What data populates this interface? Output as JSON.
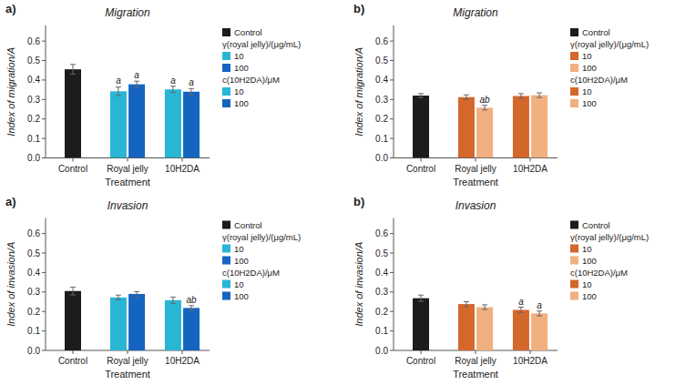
{
  "chart_data": [
    {
      "type": "bar",
      "panel_label": "a)",
      "title": "Migration",
      "x_label": "Treatment",
      "y_label": "Index of migration/A",
      "categories": [
        "Control",
        "Royal jelly",
        "10H2DA"
      ],
      "ylim": [
        0,
        0.68
      ],
      "yticks": [
        {
          "value": 0.0,
          "label": "0.0"
        },
        0.1,
        0.2,
        0.3,
        0.4,
        0.5,
        0.6
      ],
      "grid": false,
      "legend": "right",
      "series": [
        {
          "name": "Control",
          "color": "#1c1c1c",
          "values": [
            0.455,
            null,
            null
          ],
          "errors": [
            0.025,
            null,
            null
          ]
        },
        {
          "name": "10",
          "legend_title": "γ(royal jelly)/(μg/mL)",
          "color": "#29b6d4",
          "values": [
            null,
            0.342,
            null
          ],
          "errors": [
            null,
            0.022,
            null
          ]
        },
        {
          "name": "100",
          "color": "#1565c0",
          "values": [
            null,
            0.378,
            null
          ],
          "errors": [
            null,
            0.016,
            null
          ]
        },
        {
          "name": "10",
          "legend_title": "c(10H2DA)/μM",
          "color": "#29b6d4",
          "values": [
            null,
            null,
            0.352
          ],
          "errors": [
            null,
            null,
            0.016
          ]
        },
        {
          "name": "100",
          "color": "#1565c0",
          "values": [
            null,
            null,
            0.34
          ],
          "errors": [
            null,
            null,
            0.016
          ]
        }
      ],
      "annotations": [
        {
          "text": "a",
          "series": 1,
          "category": 1,
          "y": 0.375
        },
        {
          "text": "a",
          "series": 2,
          "category": 1,
          "y": 0.403
        },
        {
          "text": "a",
          "series": 3,
          "category": 2,
          "y": 0.377
        },
        {
          "text": "a",
          "series": 4,
          "category": 2,
          "y": 0.365
        }
      ]
    },
    {
      "type": "bar",
      "panel_label": "b)",
      "title": "Migration",
      "x_label": "Treatment",
      "y_label": "Index of migration/A",
      "categories": [
        "Control",
        "Royal jelly",
        "10H2DA"
      ],
      "ylim": [
        0,
        0.68
      ],
      "yticks": [
        {
          "value": 0.0,
          "label": "0.0"
        },
        0.1,
        0.2,
        0.3,
        0.4,
        0.5,
        0.6
      ],
      "grid": false,
      "legend": "right",
      "series": [
        {
          "name": "Control",
          "color": "#1c1c1c",
          "values": [
            0.32,
            null,
            null
          ],
          "errors": [
            0.01,
            null,
            null
          ]
        },
        {
          "name": "10",
          "legend_title": "γ(royal jelly)/(μg/mL)",
          "color": "#d4672a",
          "values": [
            null,
            0.312,
            null
          ],
          "errors": [
            null,
            0.012,
            null
          ]
        },
        {
          "name": "100",
          "color": "#f0b080",
          "values": [
            null,
            0.258,
            null
          ],
          "errors": [
            null,
            0.012,
            null
          ]
        },
        {
          "name": "10",
          "legend_title": "c(10H2DA)/μM",
          "color": "#d4672a",
          "values": [
            null,
            null,
            0.318
          ],
          "errors": [
            null,
            null,
            0.012
          ]
        },
        {
          "name": "100",
          "color": "#f0b080",
          "values": [
            null,
            null,
            0.322
          ],
          "errors": [
            null,
            null,
            0.012
          ]
        }
      ],
      "annotations": [
        {
          "text": "ab",
          "series": 2,
          "category": 1,
          "y": 0.278
        }
      ]
    },
    {
      "type": "bar",
      "panel_label": "a)",
      "title": "Invasion",
      "x_label": "Treatment",
      "y_label": "Index of invasion/A",
      "categories": [
        "Control",
        "Royal jelly",
        "10H2DA"
      ],
      "ylim": [
        0,
        0.68
      ],
      "yticks": [
        {
          "value": 0.0,
          "label": "0.0"
        },
        0.1,
        0.2,
        0.3,
        0.4,
        0.5,
        0.6
      ],
      "grid": false,
      "legend": "right",
      "series": [
        {
          "name": "Control",
          "color": "#1c1c1c",
          "values": [
            0.305,
            null,
            null
          ],
          "errors": [
            0.02,
            null,
            null
          ]
        },
        {
          "name": "10",
          "legend_title": "γ(royal jelly)/(μg/mL)",
          "color": "#29b6d4",
          "values": [
            null,
            0.272,
            null
          ],
          "errors": [
            null,
            0.012,
            null
          ]
        },
        {
          "name": "100",
          "color": "#1565c0",
          "values": [
            null,
            0.29,
            null
          ],
          "errors": [
            null,
            0.012,
            null
          ]
        },
        {
          "name": "10",
          "legend_title": "c(10H2DA)/μM",
          "color": "#29b6d4",
          "values": [
            null,
            null,
            0.258
          ],
          "errors": [
            null,
            null,
            0.016
          ]
        },
        {
          "name": "100",
          "color": "#1565c0",
          "values": [
            null,
            null,
            0.218
          ],
          "errors": [
            null,
            null,
            0.012
          ]
        }
      ],
      "annotations": [
        {
          "text": "ab",
          "series": 4,
          "category": 2,
          "y": 0.24
        }
      ]
    },
    {
      "type": "bar",
      "panel_label": "b)",
      "title": "Invasion",
      "x_label": "Treatment",
      "y_label": "Index of invasion/A",
      "categories": [
        "Control",
        "Royal jelly",
        "10H2DA"
      ],
      "ylim": [
        0,
        0.68
      ],
      "yticks": [
        {
          "value": 0.0,
          "label": "0.0"
        },
        0.1,
        0.2,
        0.3,
        0.4,
        0.5,
        0.6
      ],
      "grid": false,
      "legend": "right",
      "series": [
        {
          "name": "Control",
          "color": "#1c1c1c",
          "values": [
            0.268,
            null,
            null
          ],
          "errors": [
            0.016,
            null,
            null
          ]
        },
        {
          "name": "10",
          "legend_title": "γ(royal jelly)/(μg/mL)",
          "color": "#d4672a",
          "values": [
            null,
            0.238,
            null
          ],
          "errors": [
            null,
            0.012,
            null
          ]
        },
        {
          "name": "100",
          "color": "#f0b080",
          "values": [
            null,
            0.222,
            null
          ],
          "errors": [
            null,
            0.012,
            null
          ]
        },
        {
          "name": "10",
          "legend_title": "c(10H2DA)/μM",
          "color": "#d4672a",
          "values": [
            null,
            null,
            0.208
          ],
          "errors": [
            null,
            null,
            0.014
          ]
        },
        {
          "name": "100",
          "color": "#f0b080",
          "values": [
            null,
            null,
            0.19
          ],
          "errors": [
            null,
            null,
            0.012
          ]
        }
      ],
      "annotations": [
        {
          "text": "a",
          "series": 3,
          "category": 2,
          "y": 0.23
        },
        {
          "text": "a",
          "series": 4,
          "category": 2,
          "y": 0.21
        }
      ]
    }
  ]
}
